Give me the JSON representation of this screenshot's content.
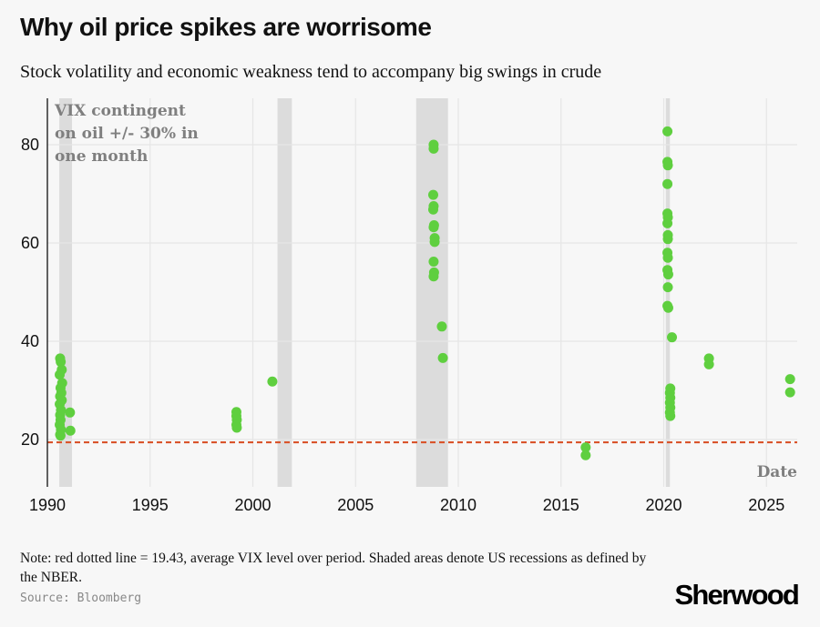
{
  "title": "Why oil price spikes are worrisome",
  "subtitle": "Stock volatility and economic weakness tend to accompany big swings in crude",
  "note": "Note: red dotted line = 19.43, average VIX level over period. Shaded areas denote US recessions as defined by the NBER.",
  "source": "Source: Bloomberg",
  "brand": "Sherwood",
  "colors": {
    "point": "#5fcf3f",
    "avg_line": "#d9542b",
    "recession": "#dcdcdc",
    "grid": "#e6e6e6",
    "annotation": "#7f7f7f"
  },
  "chart_data": {
    "type": "scatter",
    "title": "Why oil price spikes are worrisome",
    "subtitle": "Stock volatility and economic weakness tend to accompany big swings in crude",
    "xlabel": "Date",
    "ylabel": "VIX contingent on oil +/- 30% in one month",
    "ylabel_lines": [
      "VIX contingent",
      "on oil +/- 30% in",
      "one month"
    ],
    "xlim": [
      1990,
      2026.5
    ],
    "ylim": [
      10.5,
      88.5
    ],
    "x_ticks": [
      1990,
      1995,
      2000,
      2005,
      2010,
      2015,
      2020,
      2025
    ],
    "y_ticks": [
      20,
      40,
      60,
      80
    ],
    "grid": true,
    "reference_line": {
      "label": "average VIX level over period",
      "value": 19.43
    },
    "recessions": [
      [
        1990.58,
        1991.2
      ],
      [
        2001.2,
        2001.9
      ],
      [
        2007.95,
        2009.5
      ],
      [
        2020.1,
        2020.3
      ]
    ],
    "points": [
      [
        1990.62,
        36.5
      ],
      [
        1990.65,
        35.8
      ],
      [
        1990.7,
        34.2
      ],
      [
        1990.6,
        33.2
      ],
      [
        1990.72,
        31.5
      ],
      [
        1990.64,
        30.5
      ],
      [
        1990.68,
        29.5
      ],
      [
        1990.62,
        28.8
      ],
      [
        1990.7,
        28.0
      ],
      [
        1990.6,
        27.2
      ],
      [
        1990.66,
        26.0
      ],
      [
        1990.62,
        25.0
      ],
      [
        1990.64,
        24.0
      ],
      [
        1990.6,
        23.0
      ],
      [
        1990.66,
        22.0
      ],
      [
        1990.62,
        21.0
      ],
      [
        1990.64,
        20.8
      ],
      [
        1991.1,
        25.5
      ],
      [
        1991.12,
        21.8
      ],
      [
        1999.2,
        25.6
      ],
      [
        1999.2,
        24.8
      ],
      [
        1999.22,
        24.0
      ],
      [
        1999.2,
        23.0
      ],
      [
        1999.22,
        22.4
      ],
      [
        2000.95,
        31.8
      ],
      [
        2008.8,
        80.0
      ],
      [
        2008.8,
        79.2
      ],
      [
        2008.78,
        69.8
      ],
      [
        2008.8,
        67.5
      ],
      [
        2008.78,
        66.8
      ],
      [
        2008.82,
        63.6
      ],
      [
        2008.8,
        63.2
      ],
      [
        2008.85,
        61.0
      ],
      [
        2008.85,
        60.2
      ],
      [
        2008.8,
        56.2
      ],
      [
        2008.82,
        54.0
      ],
      [
        2008.8,
        53.2
      ],
      [
        2009.2,
        43.0
      ],
      [
        2009.25,
        36.6
      ],
      [
        2016.2,
        18.4
      ],
      [
        2016.2,
        16.8
      ],
      [
        2020.18,
        82.7
      ],
      [
        2020.18,
        76.5
      ],
      [
        2020.2,
        75.8
      ],
      [
        2020.18,
        72.0
      ],
      [
        2020.18,
        66.0
      ],
      [
        2020.2,
        65.2
      ],
      [
        2020.18,
        64.0
      ],
      [
        2020.2,
        61.6
      ],
      [
        2020.2,
        60.8
      ],
      [
        2020.18,
        58.0
      ],
      [
        2020.2,
        57.0
      ],
      [
        2020.18,
        54.5
      ],
      [
        2020.22,
        53.6
      ],
      [
        2020.2,
        51.0
      ],
      [
        2020.18,
        47.2
      ],
      [
        2020.22,
        46.8
      ],
      [
        2020.4,
        40.8
      ],
      [
        2020.32,
        30.4
      ],
      [
        2020.3,
        29.5
      ],
      [
        2020.32,
        28.5
      ],
      [
        2020.3,
        27.5
      ],
      [
        2020.32,
        26.5
      ],
      [
        2020.3,
        25.5
      ],
      [
        2020.32,
        24.8
      ],
      [
        2022.2,
        36.5
      ],
      [
        2022.2,
        35.3
      ],
      [
        2026.15,
        32.3
      ],
      [
        2026.15,
        29.6
      ]
    ]
  }
}
